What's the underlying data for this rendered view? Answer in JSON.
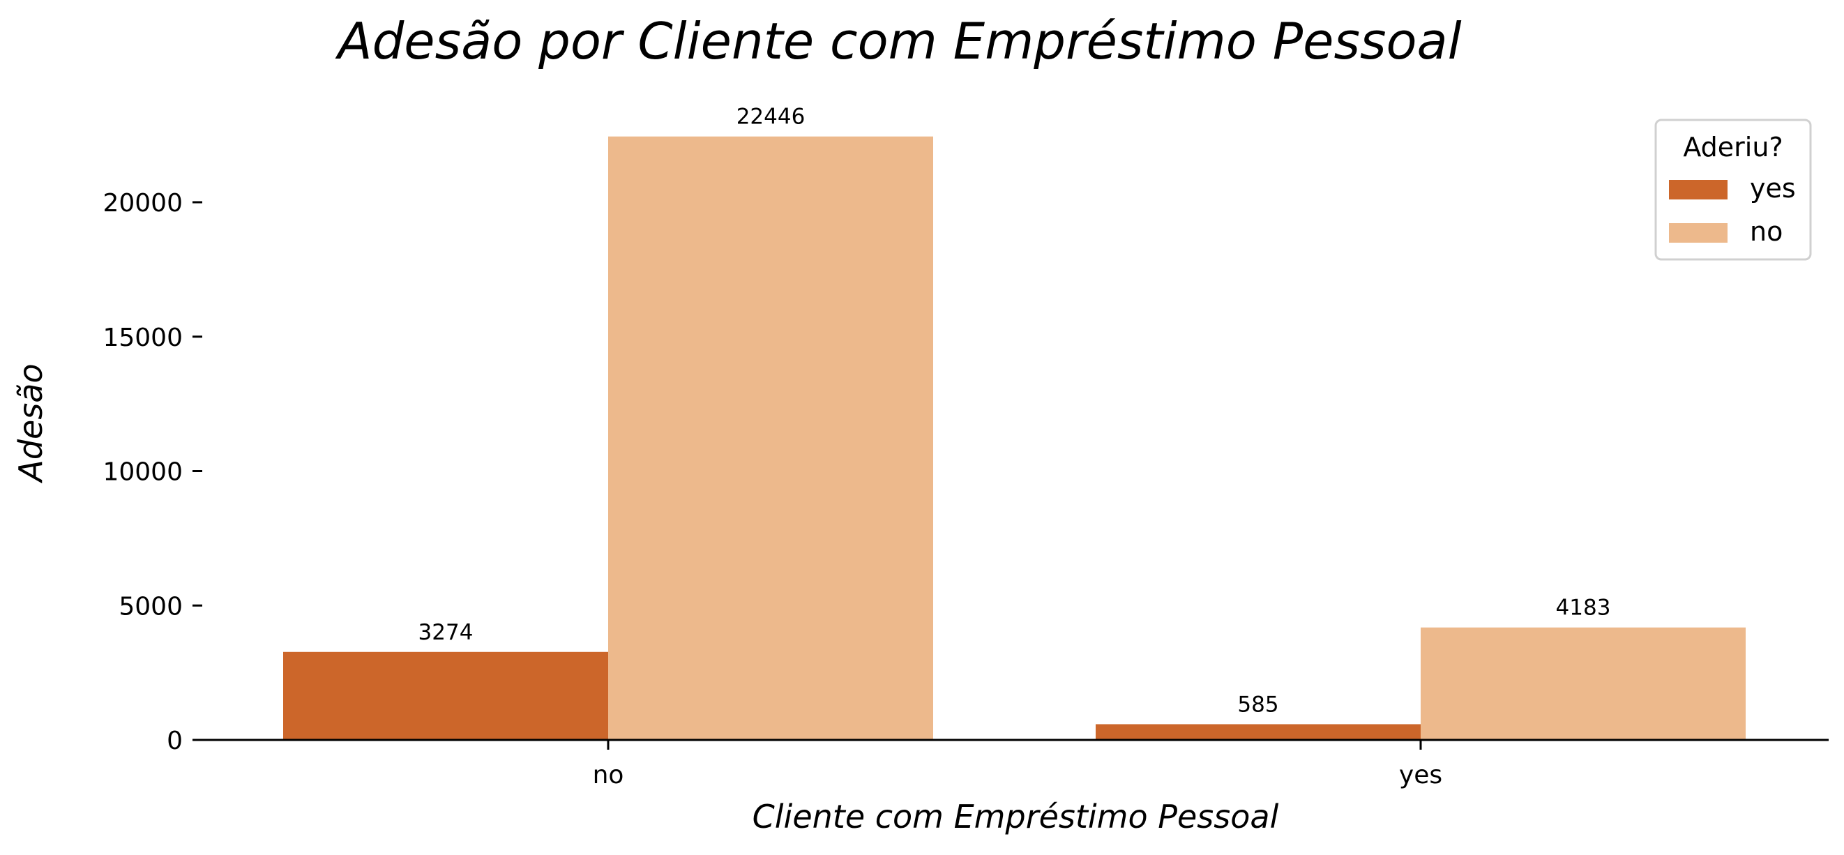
{
  "chart_data": {
    "type": "bar",
    "title": "Adesão por Cliente com Empréstimo Pessoal",
    "xlabel": "Cliente com Empréstimo Pessoal",
    "ylabel": "Adesão",
    "categories": [
      "no",
      "yes"
    ],
    "series": [
      {
        "name": "yes",
        "values": [
          3274,
          585
        ],
        "color": "#cc662a"
      },
      {
        "name": "no",
        "values": [
          22446,
          4183
        ],
        "color": "#edb98c"
      }
    ],
    "ylim": [
      0,
      23500
    ],
    "yticks": [
      0,
      5000,
      10000,
      15000,
      20000
    ],
    "legend": {
      "title": "Aderiu?",
      "placement": "top-right"
    },
    "grid": false,
    "data_labels": true
  }
}
